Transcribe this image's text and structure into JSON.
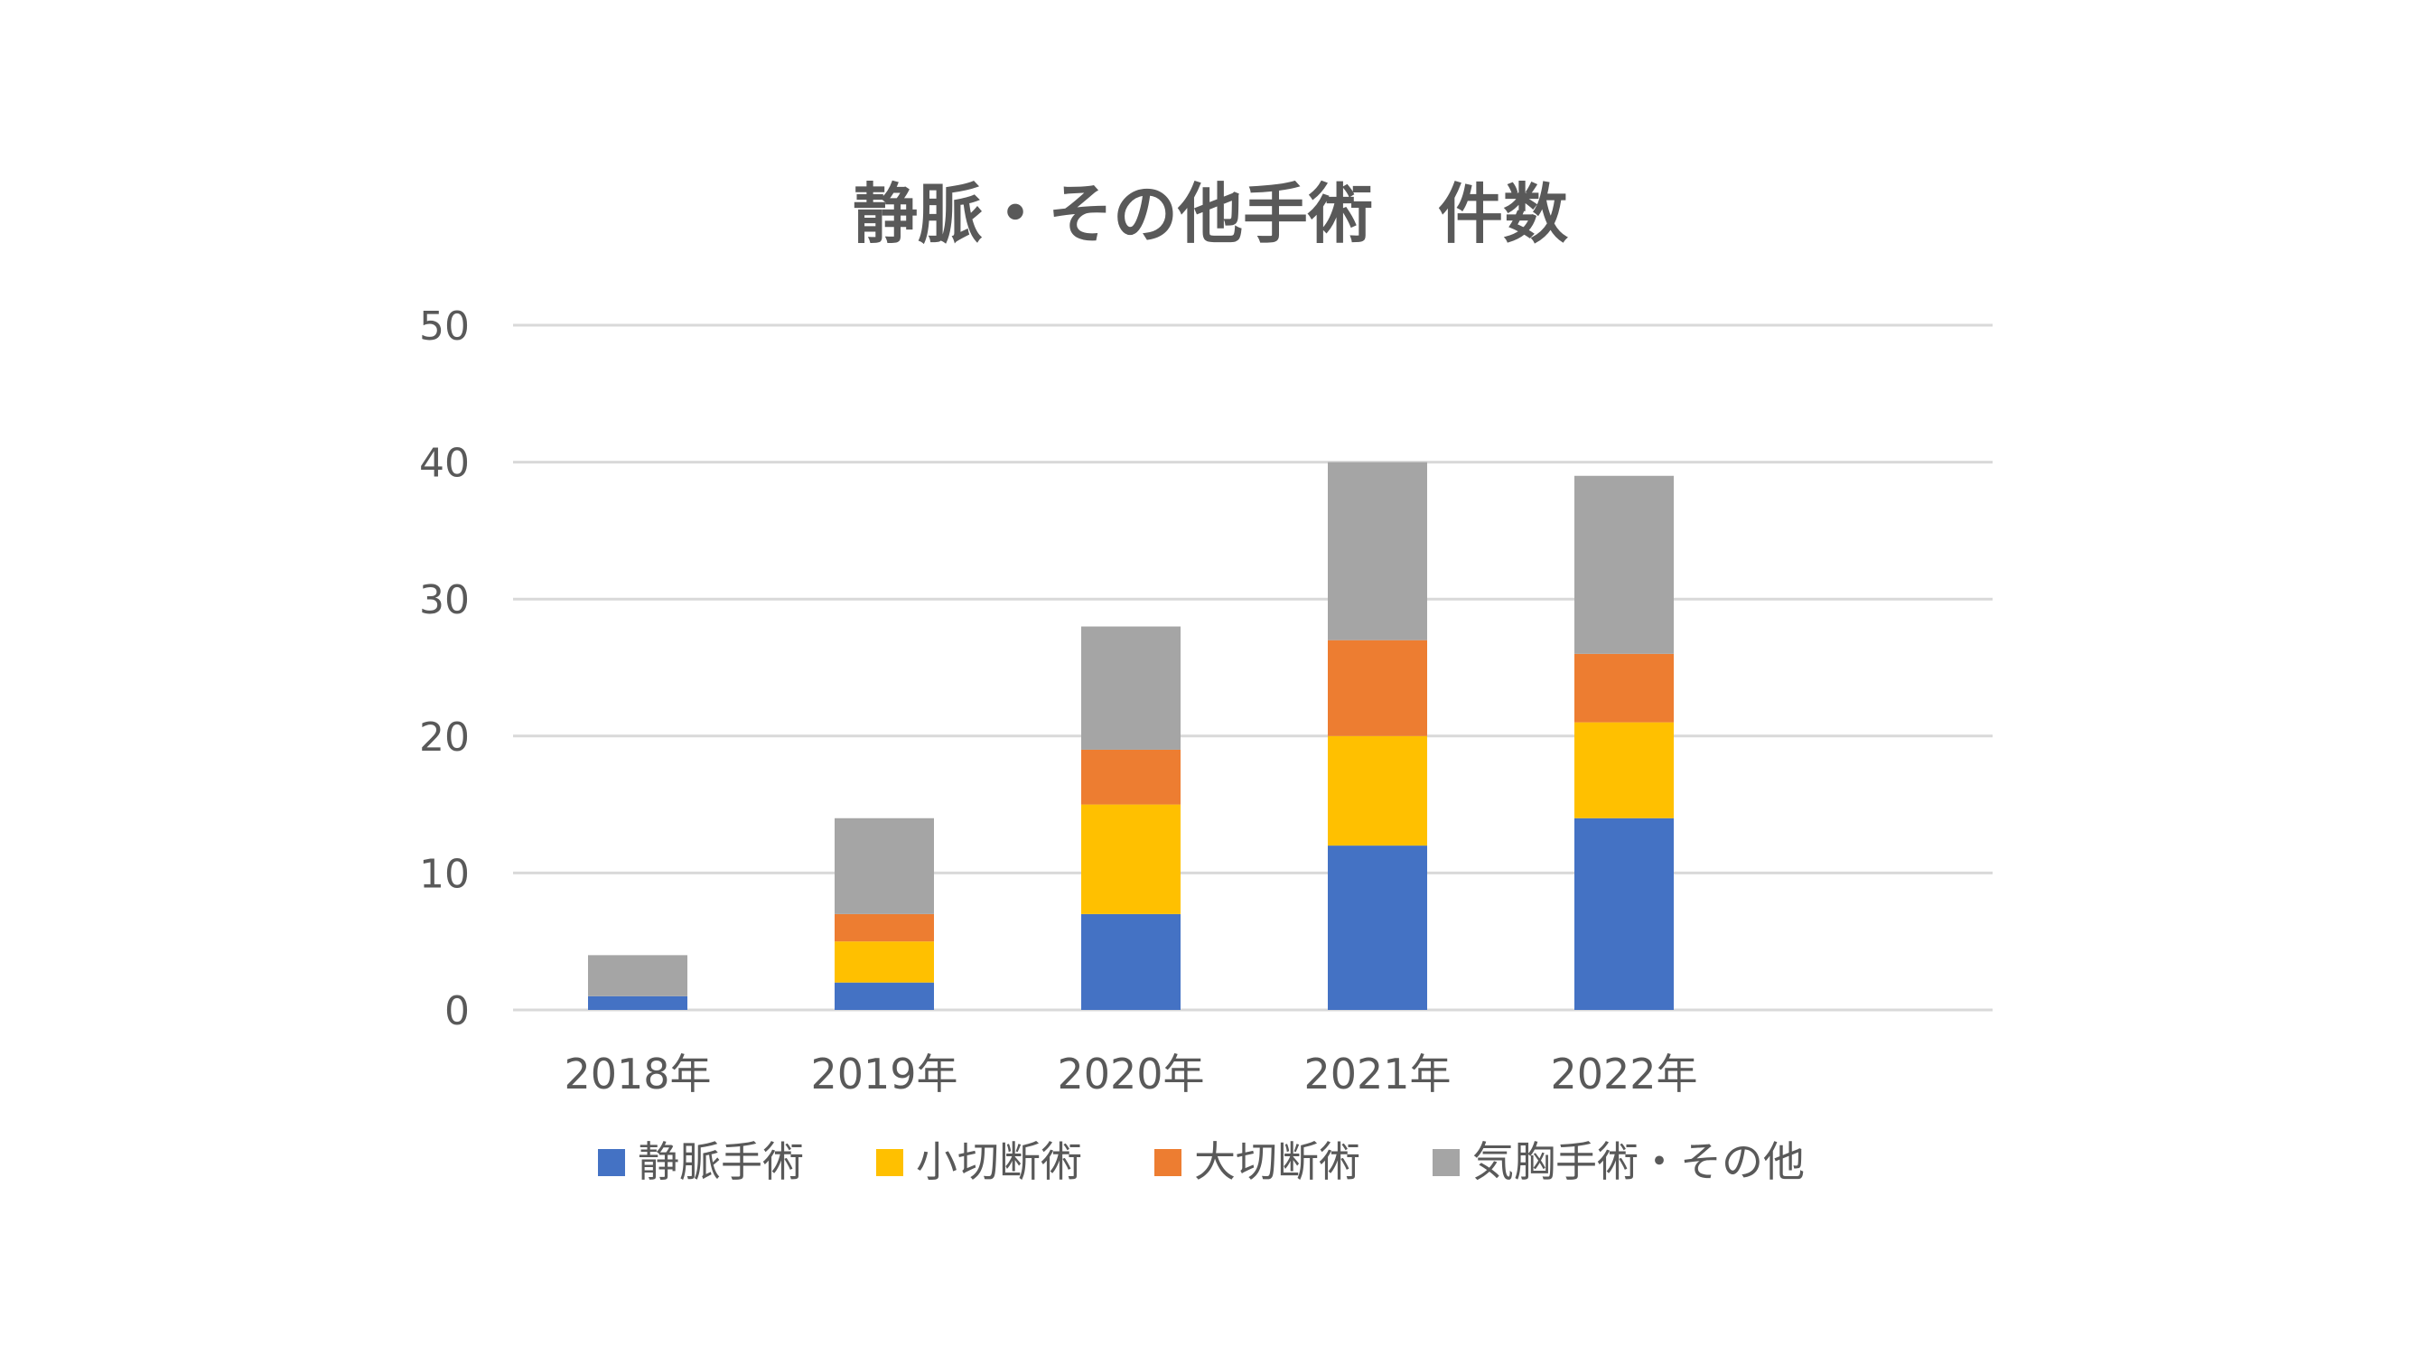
{
  "chart_data": {
    "type": "bar",
    "stacked": true,
    "title": "静脈・その他手術　件数",
    "xlabel": "",
    "ylabel": "",
    "categories": [
      "2018年",
      "2019年",
      "2020年",
      "2021年",
      "2022年"
    ],
    "ylim": [
      0,
      50
    ],
    "yticks": [
      0,
      10,
      20,
      30,
      40,
      50
    ],
    "grid": true,
    "legend_position": "bottom",
    "series": [
      {
        "name": "静脈手術",
        "color": "#4472C4",
        "values": [
          1,
          2,
          7,
          12,
          14
        ]
      },
      {
        "name": "小切断術",
        "color": "#FFC000",
        "values": [
          0,
          3,
          8,
          8,
          7
        ]
      },
      {
        "name": "大切断術",
        "color": "#ED7D31",
        "values": [
          0,
          2,
          4,
          7,
          5
        ]
      },
      {
        "name": "気胸手術・その他",
        "color": "#A5A5A5",
        "values": [
          3,
          7,
          9,
          13,
          13
        ]
      }
    ]
  }
}
